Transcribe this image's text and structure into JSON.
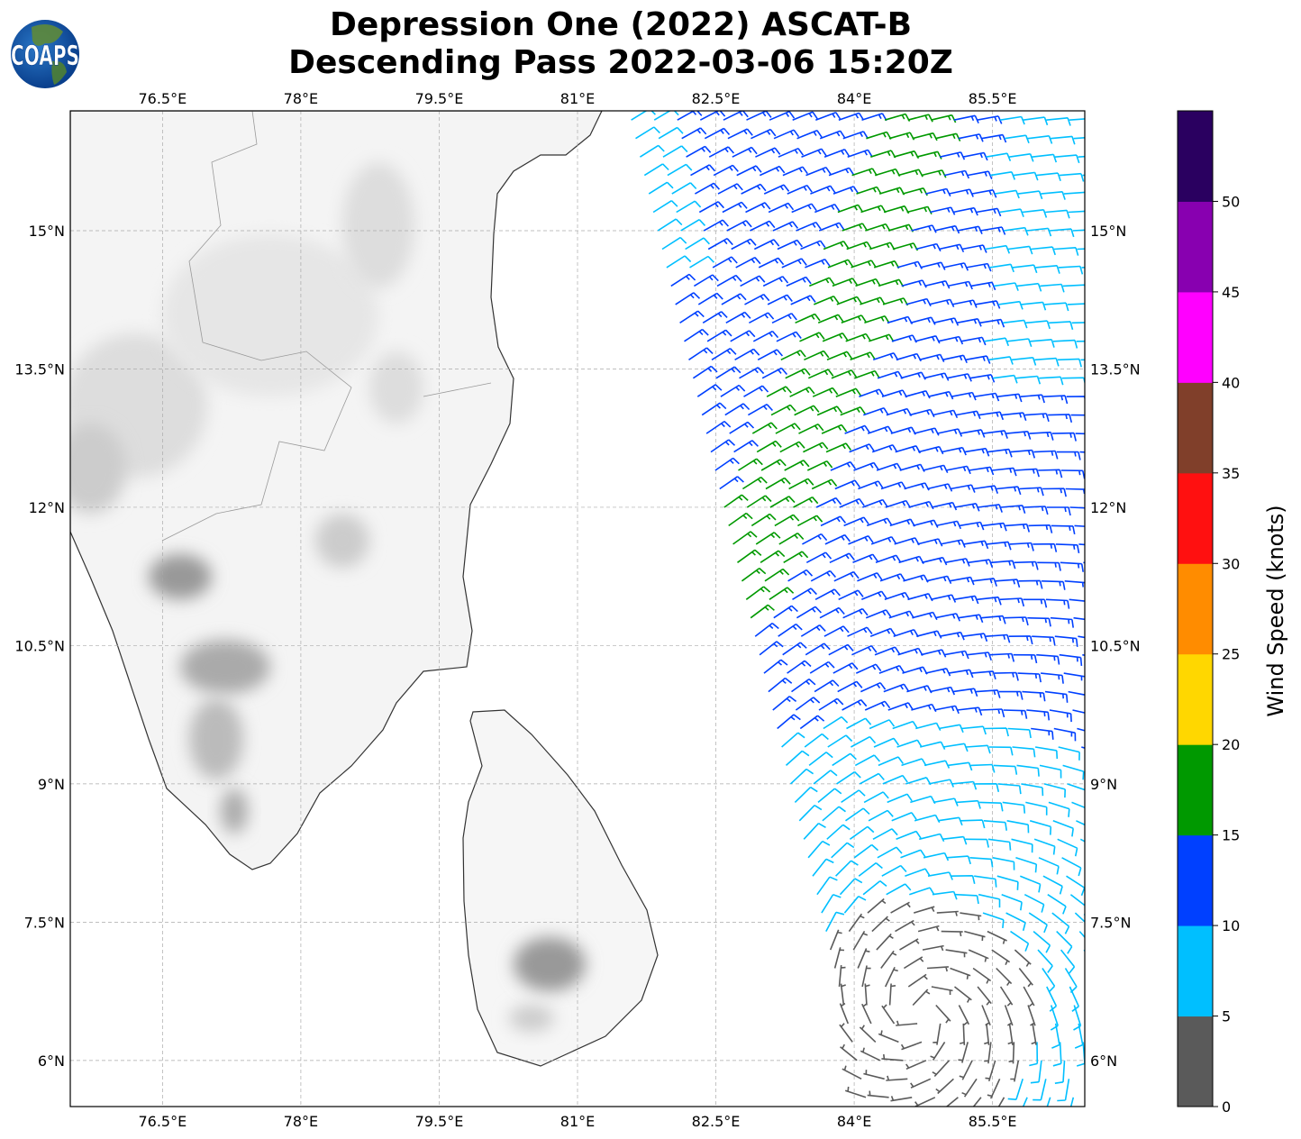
{
  "title": {
    "line1": "Depression One (2022) ASCAT-B",
    "line2": "Descending Pass 2022-03-06 15:20Z"
  },
  "logo": {
    "text": "COAPS"
  },
  "map": {
    "extent": {
      "lon": [
        75.5,
        86.5
      ],
      "lat": [
        5.5,
        16.3
      ]
    },
    "lon_ticks": [
      76.5,
      78,
      79.5,
      81,
      82.5,
      84,
      85.5
    ],
    "lon_labels": [
      "76.5°E",
      "78°E",
      "79.5°E",
      "81°E",
      "82.5°E",
      "84°E",
      "85.5°E"
    ],
    "lat_ticks": [
      15,
      13.5,
      12,
      10.5,
      9,
      7.5,
      6
    ],
    "lat_labels": [
      "15°N",
      "13.5°N",
      "12°N",
      "10.5°N",
      "9°N",
      "7.5°N",
      "6°N"
    ],
    "grid": true
  },
  "colorbar": {
    "label": "Wind Speed (knots)",
    "range": [
      0,
      55
    ],
    "ticks": [
      "0",
      "5",
      "10",
      "15",
      "20",
      "25",
      "30",
      "35",
      "40",
      "45",
      "50"
    ],
    "colors": [
      "#5a5a5a",
      "#00bfff",
      "#0040ff",
      "#009900",
      "#ffd700",
      "#ff8c00",
      "#ff1010",
      "#803f2a",
      "#ff00ff",
      "#8800b0",
      "#2a0060"
    ]
  }
}
